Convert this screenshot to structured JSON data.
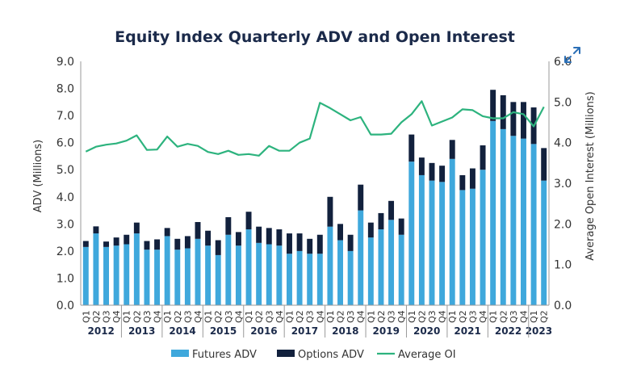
{
  "chart_data": {
    "type": "bar",
    "title": "Equity Index Quarterly ADV and Open Interest",
    "ylabel": "ADV (Millions)",
    "y2label": "Average Open Interest (Millions)",
    "ylim": [
      0,
      9
    ],
    "y2lim": [
      0,
      6
    ],
    "yticks": [
      "0.0",
      "1.0",
      "2.0",
      "3.0",
      "4.0",
      "5.0",
      "6.0",
      "7.0",
      "8.0",
      "9.0"
    ],
    "y2ticks": [
      "0.0",
      "1.0",
      "2.0",
      "3.0",
      "4.0",
      "5.0",
      "6.0"
    ],
    "stacked": true,
    "grid": false,
    "legend_position": "bottom",
    "quarter_labels": [
      "Q1",
      "Q2",
      "Q3",
      "Q4"
    ],
    "years": [
      "2012",
      "2013",
      "2014",
      "2015",
      "2016",
      "2017",
      "2018",
      "2019",
      "2020",
      "2021",
      "2022",
      "2023"
    ],
    "year_quarter_counts": [
      4,
      4,
      4,
      4,
      4,
      4,
      4,
      4,
      4,
      4,
      4,
      2
    ],
    "series": [
      {
        "name": "Futures ADV",
        "kind": "bar",
        "color": "#3fa8dc",
        "values": [
          2.15,
          2.65,
          2.15,
          2.2,
          2.25,
          2.65,
          2.05,
          2.05,
          2.55,
          2.05,
          2.1,
          2.45,
          2.2,
          1.85,
          2.6,
          2.2,
          2.8,
          2.3,
          2.25,
          2.2,
          1.9,
          2.0,
          1.9,
          1.9,
          2.9,
          2.4,
          2.0,
          3.5,
          2.5,
          2.8,
          3.15,
          2.6,
          5.3,
          4.8,
          4.6,
          4.55,
          5.4,
          4.25,
          4.3,
          5.0,
          6.8,
          6.5,
          6.25,
          6.15,
          5.95,
          4.6
        ]
      },
      {
        "name": "Options ADV",
        "kind": "bar",
        "color": "#12213d",
        "values": [
          0.22,
          0.26,
          0.2,
          0.3,
          0.35,
          0.4,
          0.32,
          0.38,
          0.3,
          0.4,
          0.45,
          0.62,
          0.55,
          0.55,
          0.65,
          0.5,
          0.65,
          0.6,
          0.6,
          0.6,
          0.75,
          0.65,
          0.55,
          0.7,
          1.1,
          0.6,
          0.6,
          0.95,
          0.55,
          0.6,
          0.7,
          0.6,
          1.0,
          0.65,
          0.65,
          0.6,
          0.7,
          0.55,
          0.75,
          0.9,
          1.15,
          1.25,
          1.25,
          1.35,
          1.35,
          1.2
        ]
      },
      {
        "name": "Average OI",
        "kind": "line",
        "axis": "right",
        "color": "#2db37e",
        "values": [
          3.78,
          3.9,
          3.95,
          3.98,
          4.05,
          4.18,
          3.82,
          3.83,
          4.15,
          3.9,
          3.97,
          3.92,
          3.77,
          3.72,
          3.8,
          3.7,
          3.72,
          3.68,
          3.92,
          3.8,
          3.8,
          4.0,
          4.1,
          4.98,
          4.85,
          4.7,
          4.55,
          4.63,
          4.2,
          4.2,
          4.22,
          4.5,
          4.7,
          5.02,
          4.42,
          4.52,
          4.62,
          4.82,
          4.8,
          4.65,
          4.6,
          4.6,
          4.75,
          4.7,
          4.4,
          4.88
        ]
      }
    ]
  },
  "ui": {
    "expand_icon": "expand-icon",
    "expand_color": "#2b6fb6"
  }
}
